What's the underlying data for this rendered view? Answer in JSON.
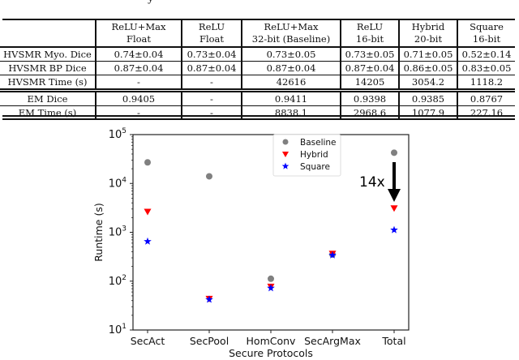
{
  "table": {
    "columns": [
      {
        "line1": "",
        "line2": ""
      },
      {
        "line1": "ReLU+Max",
        "line2": "Float"
      },
      {
        "line1": "ReLU",
        "line2": "Float"
      },
      {
        "line1": "ReLU+Max",
        "line2": "32-bit (Baseline)"
      },
      {
        "line1": "ReLU",
        "line2": "16-bit"
      },
      {
        "line1": "Hybrid",
        "line2": "20-bit"
      },
      {
        "line1": "Square",
        "line2": "16-bit"
      }
    ],
    "rows": [
      [
        "HVSMR Myo. Dice",
        "0.74±0.04",
        "0.73±0.04",
        "0.73±0.05",
        "0.73±0.05",
        "0.71±0.05",
        "0.52±0.14"
      ],
      [
        "HVSMR BP Dice",
        "0.87±0.04",
        "0.87±0.04",
        "0.87±0.04",
        "0.87±0.04",
        "0.86±0.05",
        "0.83±0.05"
      ],
      [
        "HVSMR Time (s)",
        "-",
        "-",
        "42616",
        "14205",
        "3054.2",
        "1118.2"
      ],
      [
        "EM Dice",
        "0.9405",
        "-",
        "0.9411",
        "0.9398",
        "0.9385",
        "0.8767"
      ],
      [
        "EM Time (s)",
        "-",
        "-",
        "8838.1",
        "2968.6",
        "1077.9",
        "227.16"
      ]
    ]
  },
  "chart_data": {
    "type": "scatter",
    "title": "",
    "xlabel": "Secure Protocols",
    "ylabel": "Runtime (s)",
    "yscale": "log",
    "ylim": [
      10,
      100000
    ],
    "ytick_labels": [
      "10^1",
      "10^2",
      "10^3",
      "10^4",
      "10^5"
    ],
    "categories": [
      "SecAct",
      "SecPool",
      "HomConv",
      "SecArgMax",
      "Total"
    ],
    "series": [
      {
        "name": "Baseline",
        "marker": "circle",
        "color": "#808080",
        "values": [
          27000,
          14000,
          112,
          350,
          42616
        ]
      },
      {
        "name": "Hybrid",
        "marker": "triangle-down",
        "color": "#ff0000",
        "values": [
          2600,
          43,
          76,
          360,
          3054
        ]
      },
      {
        "name": "Square",
        "marker": "star",
        "color": "#0000ff",
        "values": [
          650,
          42,
          72,
          340,
          1118
        ]
      }
    ],
    "legend_position": "upper center",
    "grid": false,
    "annotations": [
      {
        "text": "14x",
        "type": "arrow-down",
        "from": "Baseline Total",
        "to": "Hybrid Total"
      }
    ]
  }
}
